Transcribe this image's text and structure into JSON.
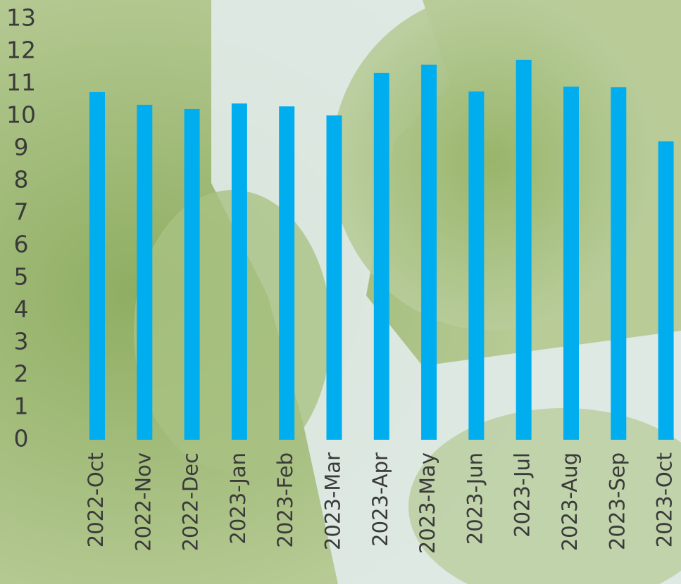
{
  "chart_data": {
    "type": "bar",
    "categories": [
      "2022-Oct",
      "2022-Nov",
      "2022-Dec",
      "2023-Jan",
      "2023-Feb",
      "2023-Mar",
      "2023-Apr",
      "2023-May",
      "2023-Jun",
      "2023-Jul",
      "2023-Aug",
      "2023-Sep",
      "2023-Oct"
    ],
    "values": [
      10.74,
      10.35,
      10.22,
      10.39,
      10.3,
      10.02,
      11.33,
      11.59,
      10.76,
      11.74,
      10.91,
      10.89,
      9.22
    ],
    "color": "#00aeef",
    "ylim": [
      0,
      13
    ],
    "yticks": [
      0,
      1,
      2,
      3,
      4,
      5,
      6,
      7,
      8,
      9,
      10,
      11,
      12,
      13
    ],
    "grid": false
  }
}
